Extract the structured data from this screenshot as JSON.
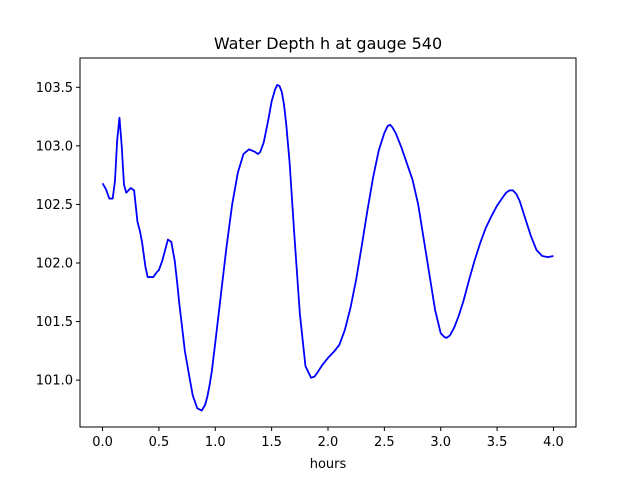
{
  "chart_data": {
    "type": "line",
    "title": "Water Depth h at gauge 540",
    "xlabel": "hours",
    "ylabel": "",
    "xlim": [
      -0.2,
      4.2
    ],
    "ylim": [
      100.6,
      103.75
    ],
    "xticks": [
      0.0,
      0.5,
      1.0,
      1.5,
      2.0,
      2.5,
      3.0,
      3.5,
      4.0
    ],
    "xtick_labels": [
      "0.0",
      "0.5",
      "1.0",
      "1.5",
      "2.0",
      "2.5",
      "3.0",
      "3.5",
      "4.0"
    ],
    "yticks": [
      101.0,
      101.5,
      102.0,
      102.5,
      103.0,
      103.5
    ],
    "ytick_labels": [
      "101.0",
      "101.5",
      "102.0",
      "102.5",
      "103.0",
      "103.5"
    ],
    "grid": false,
    "series": [
      {
        "color": "#0000ff",
        "x": [
          0.0,
          0.03,
          0.06,
          0.09,
          0.11,
          0.13,
          0.15,
          0.17,
          0.19,
          0.21,
          0.23,
          0.25,
          0.28,
          0.31,
          0.33,
          0.35,
          0.38,
          0.4,
          0.42,
          0.45,
          0.48,
          0.5,
          0.53,
          0.58,
          0.61,
          0.64,
          0.66,
          0.68,
          0.7,
          0.73,
          0.77,
          0.8,
          0.84,
          0.88,
          0.91,
          0.93,
          0.95,
          0.97,
          1.0,
          1.05,
          1.1,
          1.15,
          1.2,
          1.25,
          1.3,
          1.35,
          1.38,
          1.4,
          1.43,
          1.47,
          1.5,
          1.53,
          1.55,
          1.57,
          1.59,
          1.61,
          1.63,
          1.66,
          1.7,
          1.75,
          1.8,
          1.85,
          1.88,
          1.91,
          1.95,
          2.0,
          2.05,
          2.1,
          2.15,
          2.2,
          2.25,
          2.3,
          2.35,
          2.4,
          2.45,
          2.5,
          2.53,
          2.55,
          2.57,
          2.6,
          2.65,
          2.7,
          2.75,
          2.8,
          2.85,
          2.9,
          2.95,
          3.0,
          3.03,
          3.05,
          3.08,
          3.12,
          3.16,
          3.2,
          3.25,
          3.3,
          3.35,
          3.4,
          3.45,
          3.5,
          3.55,
          3.58,
          3.61,
          3.64,
          3.67,
          3.7,
          3.75,
          3.8,
          3.85,
          3.9,
          3.95,
          4.0
        ],
        "y": [
          102.68,
          102.63,
          102.55,
          102.55,
          102.7,
          103.05,
          103.24,
          103.0,
          102.67,
          102.6,
          102.62,
          102.64,
          102.62,
          102.35,
          102.28,
          102.18,
          101.97,
          101.88,
          101.88,
          101.88,
          101.92,
          101.94,
          102.02,
          102.2,
          102.18,
          102.02,
          101.85,
          101.66,
          101.5,
          101.25,
          101.03,
          100.87,
          100.76,
          100.74,
          100.79,
          100.86,
          100.96,
          101.08,
          101.32,
          101.73,
          102.14,
          102.5,
          102.77,
          102.93,
          102.97,
          102.95,
          102.93,
          102.95,
          103.03,
          103.22,
          103.38,
          103.48,
          103.52,
          103.51,
          103.46,
          103.35,
          103.18,
          102.85,
          102.26,
          101.57,
          101.12,
          101.02,
          101.03,
          101.07,
          101.13,
          101.19,
          101.24,
          101.3,
          101.43,
          101.62,
          101.86,
          102.15,
          102.45,
          102.73,
          102.96,
          103.11,
          103.17,
          103.18,
          103.16,
          103.11,
          102.99,
          102.85,
          102.71,
          102.5,
          102.2,
          101.9,
          101.6,
          101.4,
          101.37,
          101.36,
          101.38,
          101.45,
          101.55,
          101.67,
          101.85,
          102.02,
          102.17,
          102.3,
          102.4,
          102.49,
          102.56,
          102.6,
          102.62,
          102.62,
          102.59,
          102.53,
          102.38,
          102.23,
          102.11,
          102.06,
          102.05,
          102.06
        ]
      }
    ]
  }
}
